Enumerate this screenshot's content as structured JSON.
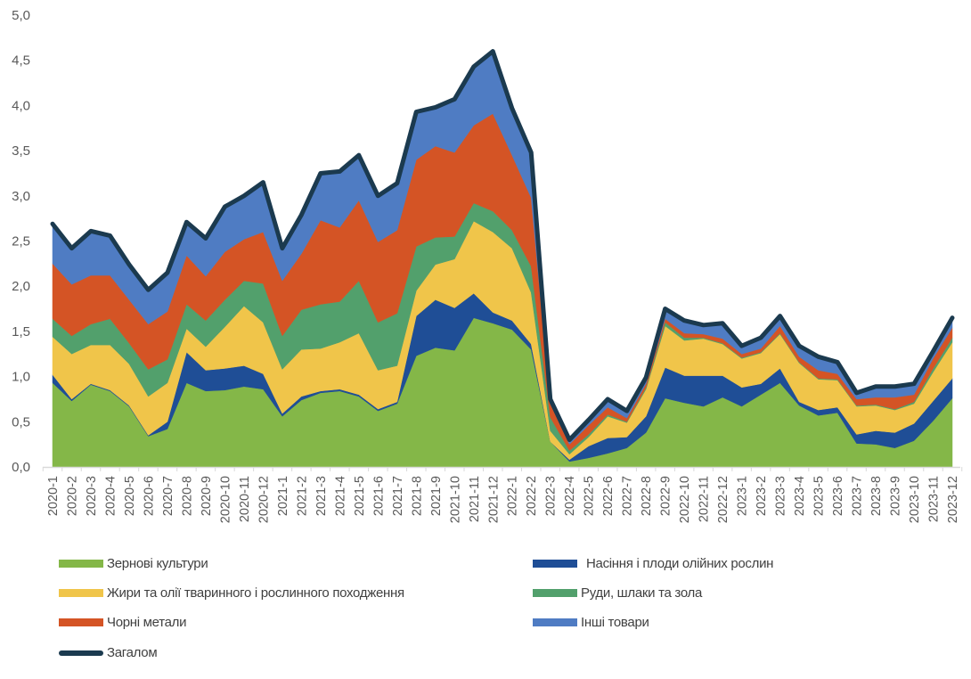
{
  "chart_data": {
    "type": "area",
    "stacked": true,
    "title": "",
    "xlabel": "",
    "ylabel": "",
    "ylim": [
      0,
      5
    ],
    "y_ticks": [
      "0,0",
      "0,5",
      "1,0",
      "1,5",
      "2,0",
      "2,5",
      "3,0",
      "3,5",
      "4,0",
      "4,5",
      "5,0"
    ],
    "y_tick_values": [
      0,
      0.5,
      1,
      1.5,
      2,
      2.5,
      3,
      3.5,
      4,
      4.5,
      5
    ],
    "grid": false,
    "legend_position": "bottom",
    "categories": [
      "2020-1",
      "2020-2",
      "2020-3",
      "2020-4",
      "2020-5",
      "2020-6",
      "2020-7",
      "2020-8",
      "2020-9",
      "2020-10",
      "2020-11",
      "2020-12",
      "2021-1",
      "2021-2",
      "2021-3",
      "2021-4",
      "2021-5",
      "2021-6",
      "2021-7",
      "2021-8",
      "2021-9",
      "2021-10",
      "2021-11",
      "2021-12",
      "2022-1",
      "2022-2",
      "2022-3",
      "2022-4",
      "2022-5",
      "2022-6",
      "2022-7",
      "2022-8",
      "2022-9",
      "2022-10",
      "2022-11",
      "2022-12",
      "2023-1",
      "2023-2",
      "2023-3",
      "2023-4",
      "2023-5",
      "2023-6",
      "2023-7",
      "2023-8",
      "2023-9",
      "2023-10",
      "2023-11",
      "2023-12"
    ],
    "series": [
      {
        "name": "Зернові культури",
        "color": "#84b748",
        "legend_col": 0,
        "legend_row": 0,
        "values": [
          0.93,
          0.73,
          0.91,
          0.84,
          0.67,
          0.34,
          0.42,
          0.93,
          0.84,
          0.85,
          0.89,
          0.86,
          0.56,
          0.74,
          0.82,
          0.84,
          0.78,
          0.62,
          0.7,
          1.23,
          1.32,
          1.29,
          1.65,
          1.59,
          1.52,
          1.3,
          0.28,
          0.06,
          0.1,
          0.15,
          0.21,
          0.38,
          0.76,
          0.71,
          0.67,
          0.77,
          0.67,
          0.8,
          0.93,
          0.68,
          0.57,
          0.6,
          0.26,
          0.25,
          0.21,
          0.29,
          0.51,
          0.76
        ]
      },
      {
        "name": "Насіння і плоди олійних рослин",
        "color": "#1f4e96",
        "legend_col": 1,
        "legend_row": 0,
        "values": [
          0.09,
          0.02,
          0.01,
          0.01,
          0.01,
          0.01,
          0.08,
          0.34,
          0.23,
          0.24,
          0.23,
          0.17,
          0.03,
          0.04,
          0.02,
          0.02,
          0.02,
          0.02,
          0.02,
          0.44,
          0.53,
          0.47,
          0.27,
          0.12,
          0.1,
          0.06,
          0.0,
          0.02,
          0.13,
          0.17,
          0.12,
          0.18,
          0.34,
          0.3,
          0.34,
          0.24,
          0.21,
          0.12,
          0.16,
          0.04,
          0.06,
          0.06,
          0.1,
          0.15,
          0.17,
          0.19,
          0.22,
          0.22
        ]
      },
      {
        "name": "Жири та олії тваринного і рослинного  походження",
        "color": "#f0c54a",
        "legend_col": 0,
        "legend_row": 1,
        "values": [
          0.42,
          0.5,
          0.43,
          0.5,
          0.46,
          0.43,
          0.43,
          0.26,
          0.26,
          0.46,
          0.66,
          0.57,
          0.49,
          0.52,
          0.47,
          0.52,
          0.68,
          0.43,
          0.4,
          0.28,
          0.39,
          0.54,
          0.8,
          0.89,
          0.8,
          0.57,
          0.12,
          0.06,
          0.1,
          0.24,
          0.16,
          0.3,
          0.46,
          0.39,
          0.41,
          0.35,
          0.32,
          0.34,
          0.38,
          0.43,
          0.34,
          0.3,
          0.31,
          0.28,
          0.25,
          0.22,
          0.32,
          0.4
        ]
      },
      {
        "name": "Руди, шлаки та зола",
        "color": "#52a06c",
        "legend_col": 1,
        "legend_row": 1,
        "values": [
          0.2,
          0.2,
          0.23,
          0.29,
          0.23,
          0.3,
          0.26,
          0.27,
          0.29,
          0.3,
          0.28,
          0.43,
          0.37,
          0.44,
          0.49,
          0.45,
          0.58,
          0.53,
          0.58,
          0.49,
          0.3,
          0.25,
          0.2,
          0.23,
          0.2,
          0.29,
          0.15,
          0.04,
          0.03,
          0.02,
          0.01,
          0.02,
          0.04,
          0.03,
          0.01,
          0.01,
          0.01,
          0.01,
          0.01,
          0.01,
          0.01,
          0.01,
          0.01,
          0.01,
          0.01,
          0.02,
          0.04,
          0.05
        ]
      },
      {
        "name": "Чорні метали",
        "color": "#d45425",
        "legend_col": 0,
        "legend_row": 2,
        "values": [
          0.61,
          0.57,
          0.54,
          0.48,
          0.48,
          0.5,
          0.53,
          0.54,
          0.49,
          0.53,
          0.46,
          0.57,
          0.61,
          0.62,
          0.93,
          0.82,
          0.89,
          0.89,
          0.92,
          0.96,
          1.01,
          0.93,
          0.86,
          1.08,
          0.83,
          0.76,
          0.15,
          0.07,
          0.1,
          0.08,
          0.04,
          0.04,
          0.04,
          0.05,
          0.04,
          0.05,
          0.04,
          0.04,
          0.08,
          0.06,
          0.09,
          0.06,
          0.07,
          0.08,
          0.13,
          0.08,
          0.11,
          0.11
        ]
      },
      {
        "name": "Інші товари",
        "color": "#4f7cc3",
        "legend_col": 1,
        "legend_row": 2,
        "values": [
          0.44,
          0.4,
          0.49,
          0.44,
          0.39,
          0.38,
          0.43,
          0.37,
          0.42,
          0.5,
          0.48,
          0.55,
          0.36,
          0.43,
          0.52,
          0.62,
          0.5,
          0.51,
          0.52,
          0.53,
          0.43,
          0.59,
          0.65,
          0.69,
          0.52,
          0.5,
          0.05,
          0.05,
          0.06,
          0.09,
          0.08,
          0.07,
          0.11,
          0.14,
          0.1,
          0.17,
          0.09,
          0.12,
          0.11,
          0.12,
          0.15,
          0.13,
          0.07,
          0.12,
          0.12,
          0.12,
          0.08,
          0.11
        ]
      }
    ],
    "total_line": {
      "name": "Загалом",
      "color": "#1b3a4f",
      "legend_col": 0,
      "legend_row": 3,
      "values": [
        2.69,
        2.42,
        2.61,
        2.56,
        2.24,
        1.96,
        2.15,
        2.71,
        2.53,
        2.88,
        3.0,
        3.15,
        2.42,
        2.79,
        3.25,
        3.27,
        3.45,
        3.0,
        3.14,
        3.93,
        3.98,
        4.07,
        4.43,
        4.6,
        3.97,
        3.48,
        0.75,
        0.3,
        0.52,
        0.75,
        0.62,
        0.99,
        1.75,
        1.62,
        1.57,
        1.59,
        1.34,
        1.43,
        1.67,
        1.34,
        1.22,
        1.16,
        0.82,
        0.89,
        0.89,
        0.92,
        1.28,
        1.65
      ]
    }
  }
}
